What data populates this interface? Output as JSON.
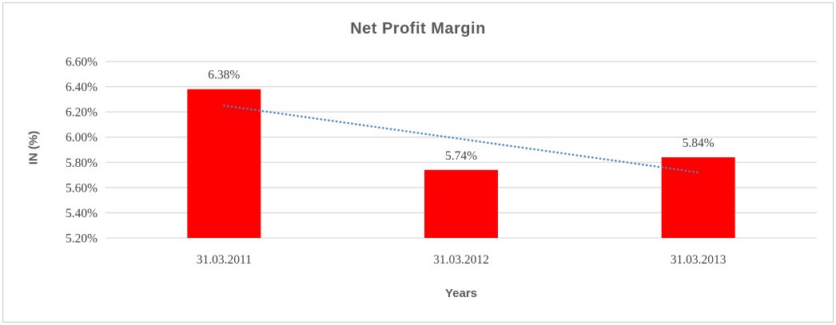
{
  "window": {
    "background": "#FFFFFF",
    "border_color": "#C8C8C8"
  },
  "chart_data": {
    "type": "bar",
    "title": "Net Profit Margin",
    "xlabel": "Years",
    "ylabel": "IN (%)",
    "categories": [
      "31.03.2011",
      "31.03.2012",
      "31.03.2013"
    ],
    "values": [
      6.38,
      5.74,
      5.84
    ],
    "data_labels": [
      "6.38%",
      "5.74%",
      "5.84%"
    ],
    "y_ticks": [
      5.2,
      5.4,
      5.6,
      5.8,
      6.0,
      6.2,
      6.4,
      6.6
    ],
    "y_tick_labels": [
      "5.20%",
      "5.40%",
      "5.60%",
      "5.80%",
      "6.00%",
      "6.20%",
      "6.40%",
      "6.60%"
    ],
    "ylim": [
      5.2,
      6.6
    ],
    "grid": true,
    "legend_position": "none",
    "bar_color": "#FF0000",
    "label_color": "#3F3F3F",
    "title_color": "#595959",
    "gridline_color": "#D9D9D9",
    "trendline": {
      "type": "linear",
      "style": "dotted",
      "color": "#4A86C8",
      "start_value": 6.25,
      "end_value": 5.72
    }
  }
}
